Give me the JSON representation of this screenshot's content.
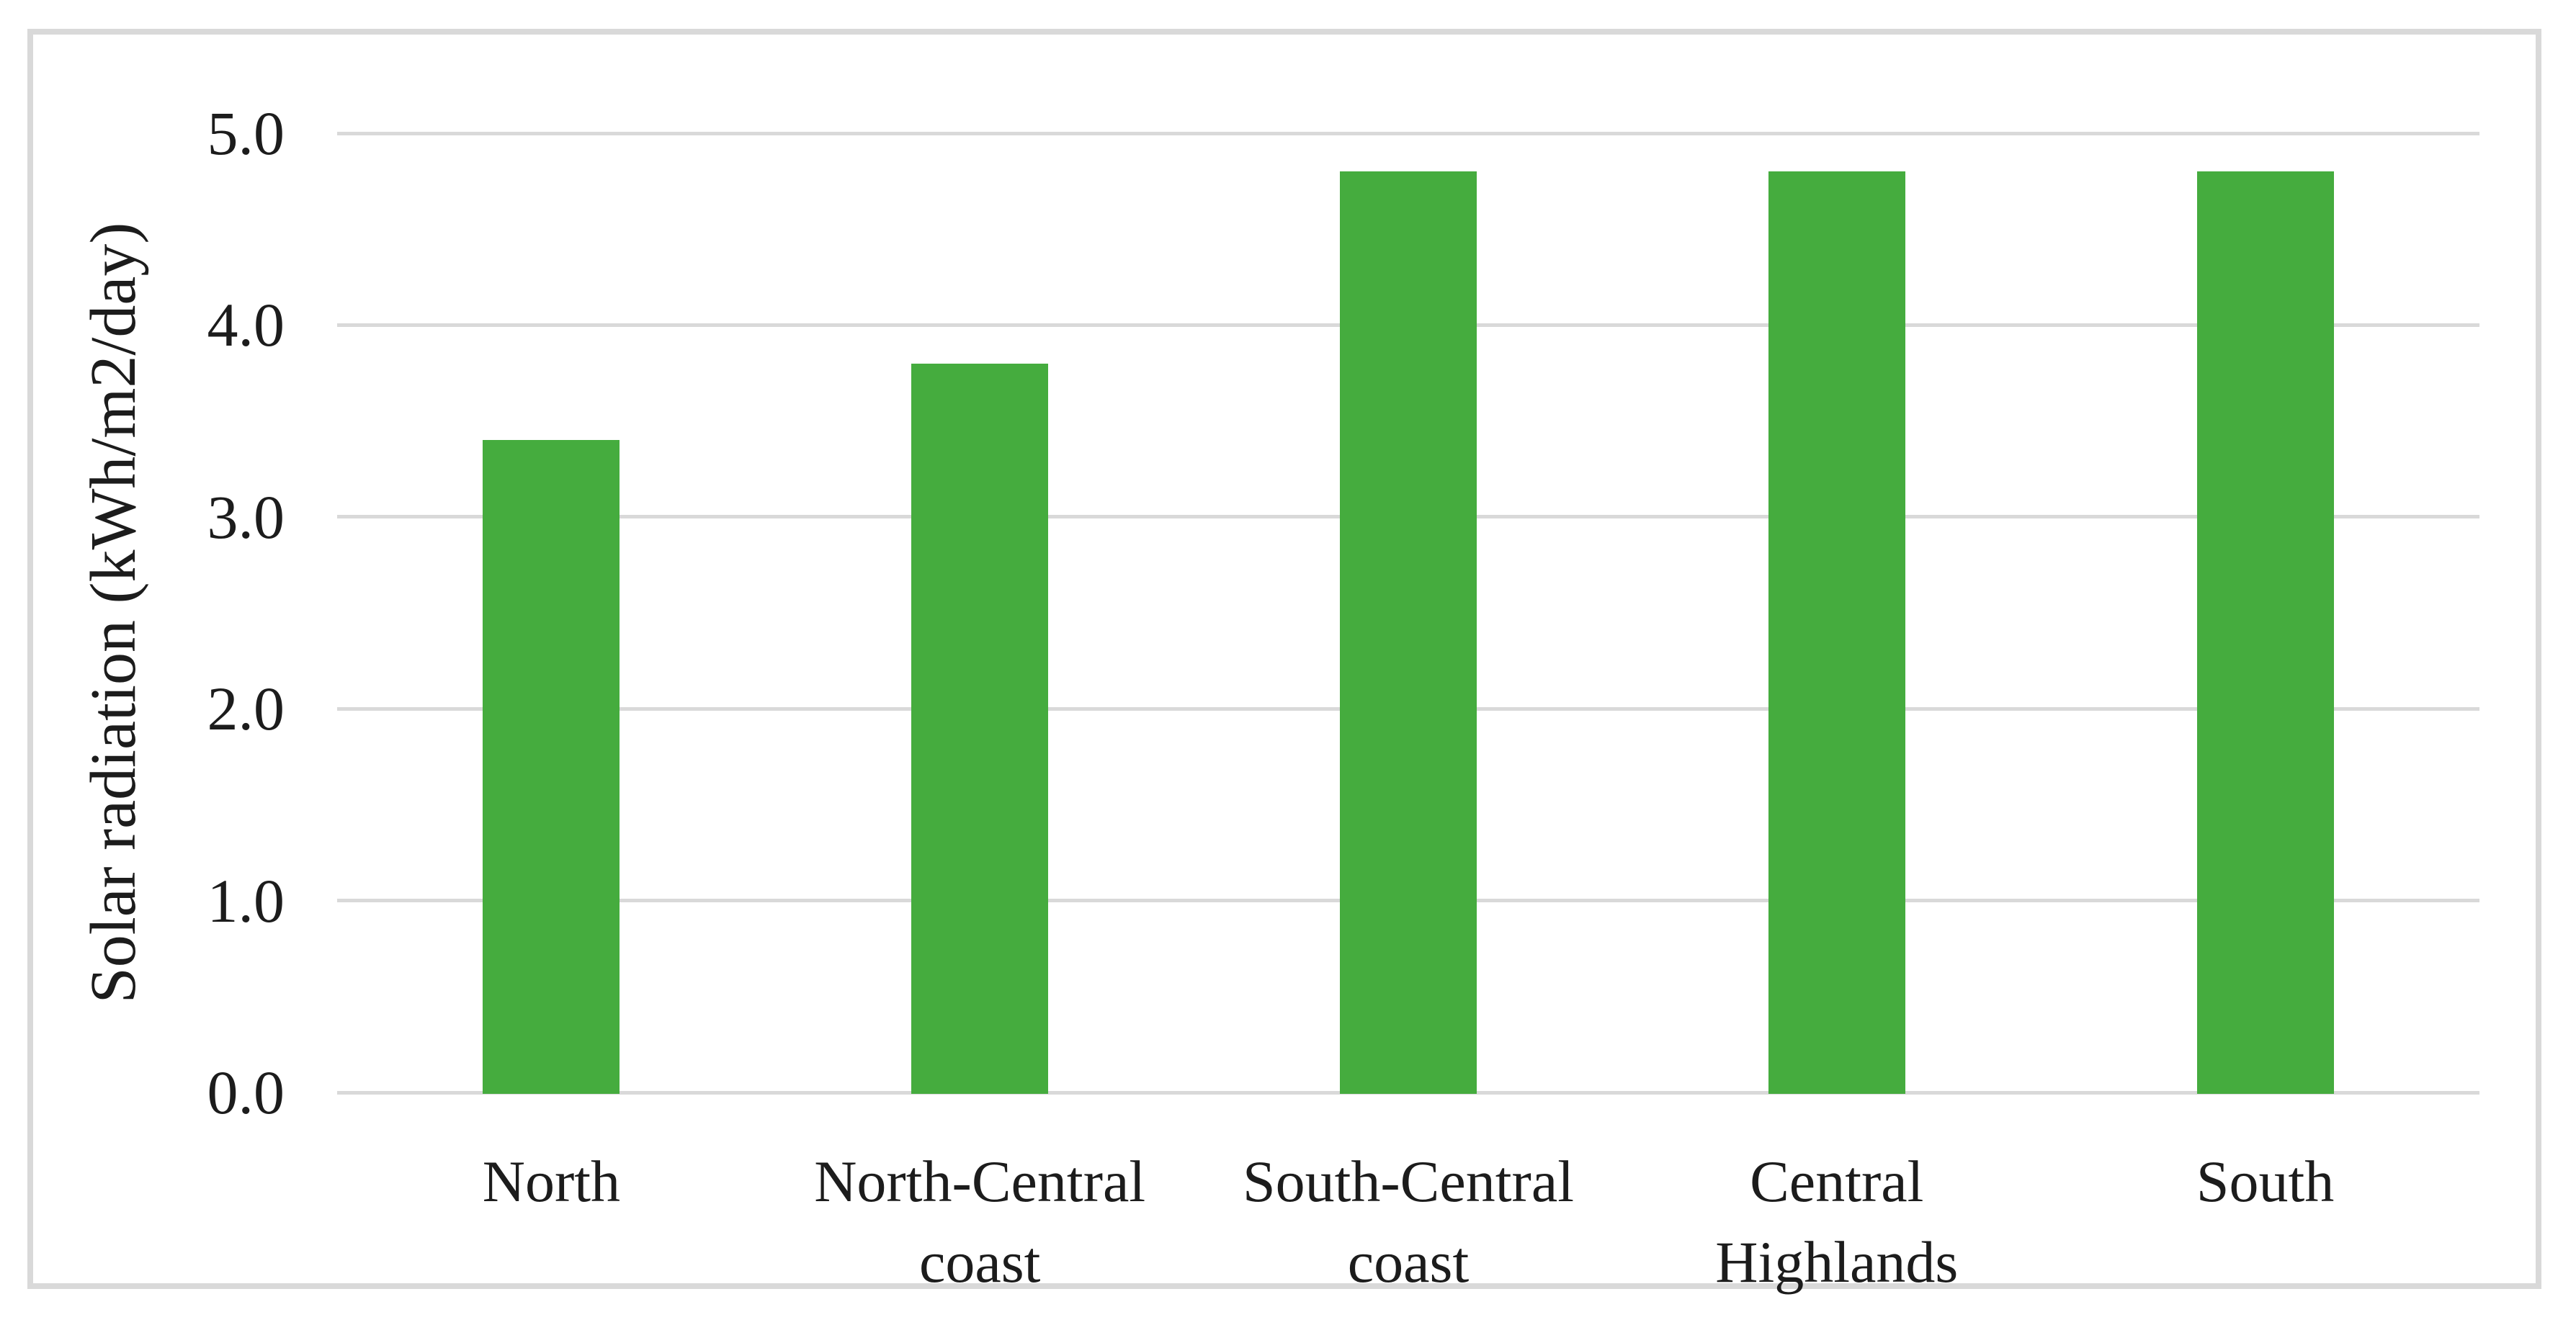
{
  "chart_data": {
    "type": "bar",
    "categories": [
      "North",
      "North-Central coast",
      "South-Central coast",
      "Central Highlands",
      "South"
    ],
    "category_label_lines": [
      [
        "North"
      ],
      [
        "North-Central",
        "coast"
      ],
      [
        "South-Central",
        "coast"
      ],
      [
        "Central",
        "Highlands"
      ],
      [
        "South"
      ]
    ],
    "values": [
      3.4,
      3.8,
      4.8,
      4.8,
      4.8
    ],
    "xlabel": "",
    "ylabel": "Solar radiation (kWh/m2/day)",
    "ylim": [
      0,
      5
    ],
    "ytick_values": [
      5,
      4,
      3,
      2,
      1,
      0
    ],
    "ytick_labels": [
      "5.0",
      "4.0",
      "3.0",
      "2.0",
      "1.0",
      "0.0"
    ],
    "grid": "horizontal gridlines every 1.0",
    "legend_position": "none",
    "colors": {
      "bar": "#45ac3e",
      "gridline": "#d9d9d9",
      "frame": "#d9d9d9",
      "text": "#1c1c1c",
      "background": "#ffffff"
    }
  }
}
